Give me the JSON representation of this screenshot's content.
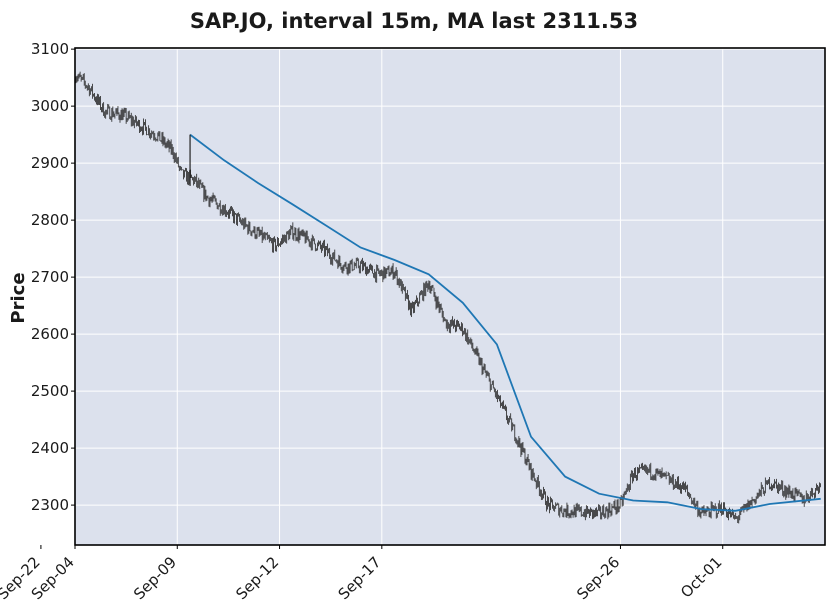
{
  "chart_data": {
    "type": "line",
    "title": "SAP.JO, interval 15m, MA last 2311.53",
    "xlabel": "",
    "ylabel": "Price",
    "ylim": [
      2230,
      3102
    ],
    "yticks": [
      "2300",
      "2400",
      "2500",
      "2600",
      "2700",
      "2800",
      "2900",
      "3000",
      "3100"
    ],
    "xticks": [
      "Sep-04",
      "Sep-09",
      "Sep-12",
      "Sep-17",
      "Sep-22",
      "Sep-26",
      "Oct-01"
    ],
    "grid": true,
    "colors": {
      "background": "#dce1ed",
      "grid": "#ffffff",
      "price": "#222222",
      "ma": "#1f77b4",
      "frame": "#000000"
    },
    "series": [
      {
        "name": "",
        "style": "ohlc",
        "x": [
          "Sep-04 09:00",
          "Sep-04 12:00",
          "Sep-04 16:00",
          "Sep-05 12:00",
          "Sep-06 12:00",
          "Sep-06 16:00",
          "Sep-09 10:00",
          "Sep-09 13:00",
          "Sep-09 16:00",
          "Sep-10 12:00",
          "Sep-11 09:00",
          "Sep-11 16:00",
          "Sep-12 12:00",
          "Sep-13 09:00",
          "Sep-13 12:00",
          "Sep-13 16:00",
          "Sep-16 12:00",
          "Sep-16 16:00",
          "Sep-17 12:00",
          "Sep-17 16:00",
          "Sep-18 12:00",
          "Sep-18 16:00",
          "Sep-19 12:00",
          "Sep-19 16:00",
          "Sep-20 12:00",
          "Sep-20 16:00",
          "Sep-23 12:00",
          "Sep-23 16:00",
          "Sep-24 12:00",
          "Sep-25 12:00",
          "Sep-26 09:00",
          "Sep-26 12:00",
          "Sep-26 16:00",
          "Sep-27 12:00",
          "Sep-27 16:00",
          "Sep-30 12:00",
          "Oct-01 09:00",
          "Oct-01 12:00",
          "Oct-02 12:00",
          "Oct-03 12:00",
          "Oct-03 16:00"
        ],
        "y": [
          3055,
          3035,
          2990,
          2985,
          2950,
          2920,
          2880,
          2870,
          2840,
          2820,
          2790,
          2755,
          2780,
          2760,
          2745,
          2720,
          2720,
          2705,
          2710,
          2640,
          2690,
          2620,
          2610,
          2550,
          2490,
          2430,
          2360,
          2300,
          2290,
          2285,
          2300,
          2355,
          2360,
          2345,
          2330,
          2285,
          2295,
          2275,
          2340,
          2310,
          2335
        ]
      },
      {
        "name": "",
        "style": "moving-average",
        "x": [
          "Sep-09 12:00",
          "Sep-10 12:00",
          "Sep-11 12:00",
          "Sep-12 12:00",
          "Sep-13 12:00",
          "Sep-16 12:00",
          "Sep-17 12:00",
          "Sep-18 12:00",
          "Sep-19 12:00",
          "Sep-20 12:00",
          "Sep-23 12:00",
          "Sep-24 12:00",
          "Sep-25 12:00",
          "Sep-26 12:00",
          "Sep-27 12:00",
          "Sep-30 12:00",
          "Oct-01 12:00",
          "Oct-02 12:00",
          "Oct-03 16:00"
        ],
        "y": [
          2950,
          2905,
          2865,
          2828,
          2790,
          2752,
          2730,
          2705,
          2655,
          2582,
          2420,
          2350,
          2320,
          2308,
          2305,
          2293,
          2290,
          2302,
          2311
        ]
      }
    ]
  }
}
